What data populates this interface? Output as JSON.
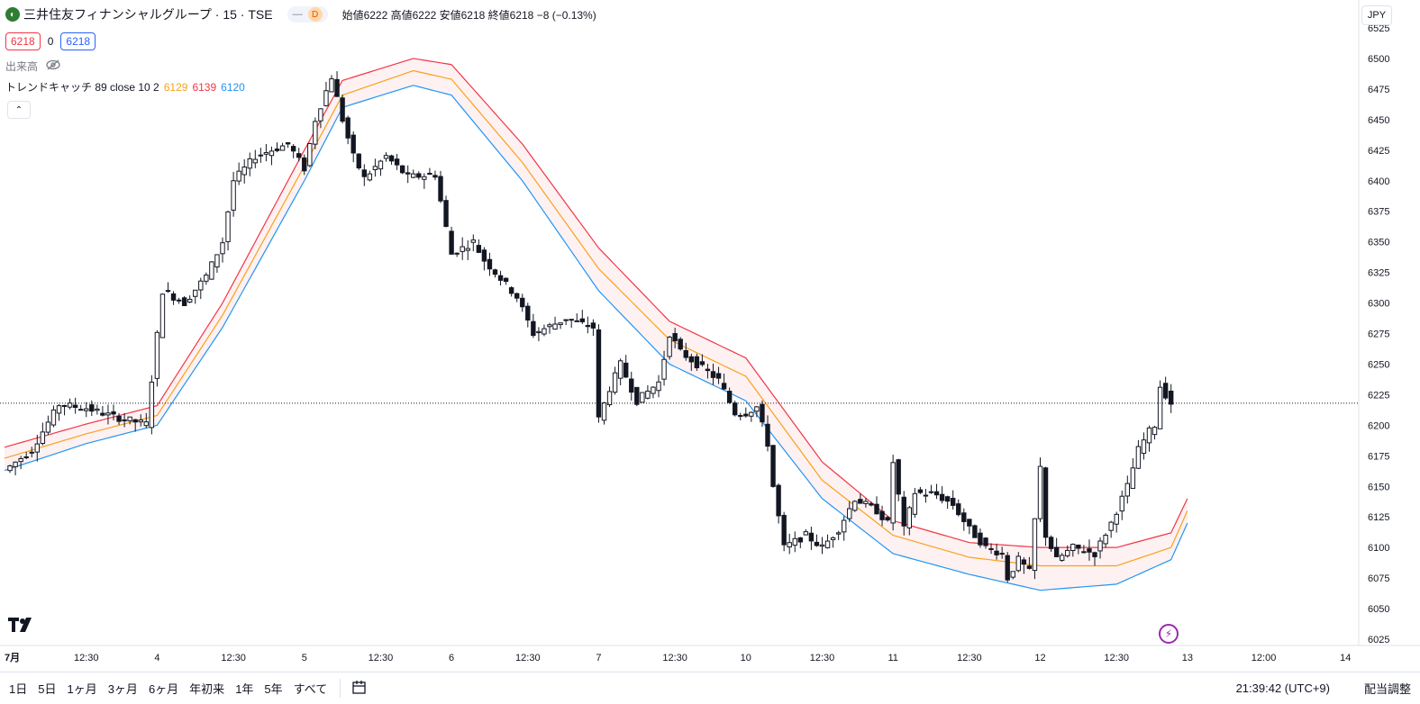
{
  "header": {
    "symbol_title": "三井住友フィナンシャルグループ · 15 · TSE",
    "pill_dash": "—",
    "pill_d": "D",
    "ohlc_text": "始値6222 高値6222 安値6218 終値6218 −8 (−0.13%)"
  },
  "quote": {
    "bid": "6218",
    "spread": "0",
    "ask": "6218"
  },
  "volume": {
    "label": "出来高"
  },
  "indicator": {
    "label": "トレンドキャッチ 89 close 10 2",
    "v1": "6129",
    "v2": "6139",
    "v3": "6120",
    "c1": "#f7a21b",
    "c2": "#f23645",
    "c3": "#2196f3"
  },
  "currency": "JPY",
  "collapse_glyph": "⌃",
  "bottom": {
    "ranges": [
      "1日",
      "5日",
      "1ヶ月",
      "3ヶ月",
      "6ヶ月",
      "年初来",
      "1年",
      "5年",
      "すべて"
    ],
    "time": "21:39:42 (UTC+9)",
    "adjust": "配当調整"
  },
  "chart_data": {
    "type": "candlestick",
    "ylim": [
      6020,
      6530
    ],
    "y_ticks": [
      6525,
      6500,
      6475,
      6450,
      6425,
      6400,
      6375,
      6350,
      6325,
      6300,
      6275,
      6250,
      6225,
      6200,
      6175,
      6150,
      6125,
      6100,
      6075,
      6050,
      6025
    ],
    "x_ticks": [
      {
        "label": "7月",
        "bar": 0
      },
      {
        "label": "12:30",
        "bar": 15
      },
      {
        "label": "4",
        "bar": 28
      },
      {
        "label": "12:30",
        "bar": 42
      },
      {
        "label": "5",
        "bar": 55
      },
      {
        "label": "12:30",
        "bar": 69
      },
      {
        "label": "6",
        "bar": 82
      },
      {
        "label": "12:30",
        "bar": 96
      },
      {
        "label": "7",
        "bar": 109
      },
      {
        "label": "12:30",
        "bar": 123
      },
      {
        "label": "10",
        "bar": 136
      },
      {
        "label": "12:30",
        "bar": 150
      },
      {
        "label": "11",
        "bar": 163
      },
      {
        "label": "12:30",
        "bar": 177
      },
      {
        "label": "12",
        "bar": 190
      },
      {
        "label": "12:30",
        "bar": 204
      },
      {
        "label": "13",
        "bar": 217
      },
      {
        "label": "12:00",
        "bar": 231
      },
      {
        "label": "14",
        "bar": 246
      }
    ],
    "last_price": 6218,
    "anchors": [
      [
        0,
        6163
      ],
      [
        5,
        6180
      ],
      [
        10,
        6217
      ],
      [
        15,
        6214
      ],
      [
        20,
        6207
      ],
      [
        26,
        6201
      ],
      [
        29,
        6310
      ],
      [
        33,
        6300
      ],
      [
        37,
        6322
      ],
      [
        40,
        6350
      ],
      [
        42,
        6400
      ],
      [
        46,
        6420
      ],
      [
        52,
        6430
      ],
      [
        55,
        6410
      ],
      [
        57,
        6450
      ],
      [
        60,
        6485
      ],
      [
        62,
        6450
      ],
      [
        64,
        6420
      ],
      [
        66,
        6402
      ],
      [
        70,
        6420
      ],
      [
        74,
        6403
      ],
      [
        79,
        6405
      ],
      [
        82,
        6340
      ],
      [
        86,
        6350
      ],
      [
        88,
        6335
      ],
      [
        94,
        6305
      ],
      [
        97,
        6275
      ],
      [
        103,
        6287
      ],
      [
        108,
        6280
      ],
      [
        109,
        6205
      ],
      [
        111,
        6230
      ],
      [
        113,
        6250
      ],
      [
        116,
        6220
      ],
      [
        120,
        6235
      ],
      [
        122,
        6275
      ],
      [
        124,
        6260
      ],
      [
        127,
        6250
      ],
      [
        131,
        6237
      ],
      [
        134,
        6210
      ],
      [
        136,
        6210
      ],
      [
        138,
        6215
      ],
      [
        140,
        6185
      ],
      [
        141,
        6150
      ],
      [
        143,
        6100
      ],
      [
        147,
        6110
      ],
      [
        150,
        6100
      ],
      [
        153,
        6115
      ],
      [
        156,
        6140
      ],
      [
        160,
        6130
      ],
      [
        162,
        6120
      ],
      [
        163,
        6170
      ],
      [
        165,
        6115
      ],
      [
        167,
        6145
      ],
      [
        171,
        6143
      ],
      [
        174,
        6135
      ],
      [
        177,
        6115
      ],
      [
        180,
        6100
      ],
      [
        183,
        6095
      ],
      [
        184,
        6075
      ],
      [
        186,
        6090
      ],
      [
        188,
        6080
      ],
      [
        190,
        6165
      ],
      [
        191,
        6110
      ],
      [
        193,
        6090
      ],
      [
        196,
        6100
      ],
      [
        200,
        6095
      ],
      [
        203,
        6120
      ],
      [
        206,
        6150
      ],
      [
        208,
        6180
      ],
      [
        210,
        6195
      ],
      [
        211,
        6200
      ],
      [
        212,
        6232
      ],
      [
        214,
        6218
      ]
    ],
    "band_anchors": {
      "blue": [
        [
          0,
          6163
        ],
        [
          15,
          6185
        ],
        [
          28,
          6200
        ],
        [
          40,
          6280
        ],
        [
          55,
          6400
        ],
        [
          62,
          6460
        ],
        [
          75,
          6478
        ],
        [
          82,
          6470
        ],
        [
          95,
          6400
        ],
        [
          109,
          6310
        ],
        [
          122,
          6250
        ],
        [
          136,
          6220
        ],
        [
          150,
          6140
        ],
        [
          163,
          6095
        ],
        [
          177,
          6078
        ],
        [
          190,
          6065
        ],
        [
          204,
          6070
        ],
        [
          214,
          6090
        ],
        [
          217,
          6120
        ]
      ],
      "orange": [
        [
          0,
          6173
        ],
        [
          15,
          6193
        ],
        [
          28,
          6208
        ],
        [
          40,
          6290
        ],
        [
          55,
          6412
        ],
        [
          62,
          6470
        ],
        [
          75,
          6490
        ],
        [
          82,
          6483
        ],
        [
          95,
          6415
        ],
        [
          109,
          6328
        ],
        [
          122,
          6270
        ],
        [
          136,
          6240
        ],
        [
          150,
          6155
        ],
        [
          163,
          6110
        ],
        [
          177,
          6092
        ],
        [
          190,
          6085
        ],
        [
          204,
          6085
        ],
        [
          214,
          6100
        ],
        [
          217,
          6130
        ]
      ],
      "red": [
        [
          0,
          6182
        ],
        [
          15,
          6201
        ],
        [
          28,
          6216
        ],
        [
          40,
          6300
        ],
        [
          55,
          6425
        ],
        [
          62,
          6482
        ],
        [
          75,
          6500
        ],
        [
          82,
          6495
        ],
        [
          95,
          6430
        ],
        [
          109,
          6345
        ],
        [
          122,
          6285
        ],
        [
          136,
          6255
        ],
        [
          150,
          6170
        ],
        [
          163,
          6122
        ],
        [
          177,
          6104
        ],
        [
          190,
          6100
        ],
        [
          204,
          6100
        ],
        [
          214,
          6112
        ],
        [
          217,
          6140
        ]
      ]
    }
  }
}
